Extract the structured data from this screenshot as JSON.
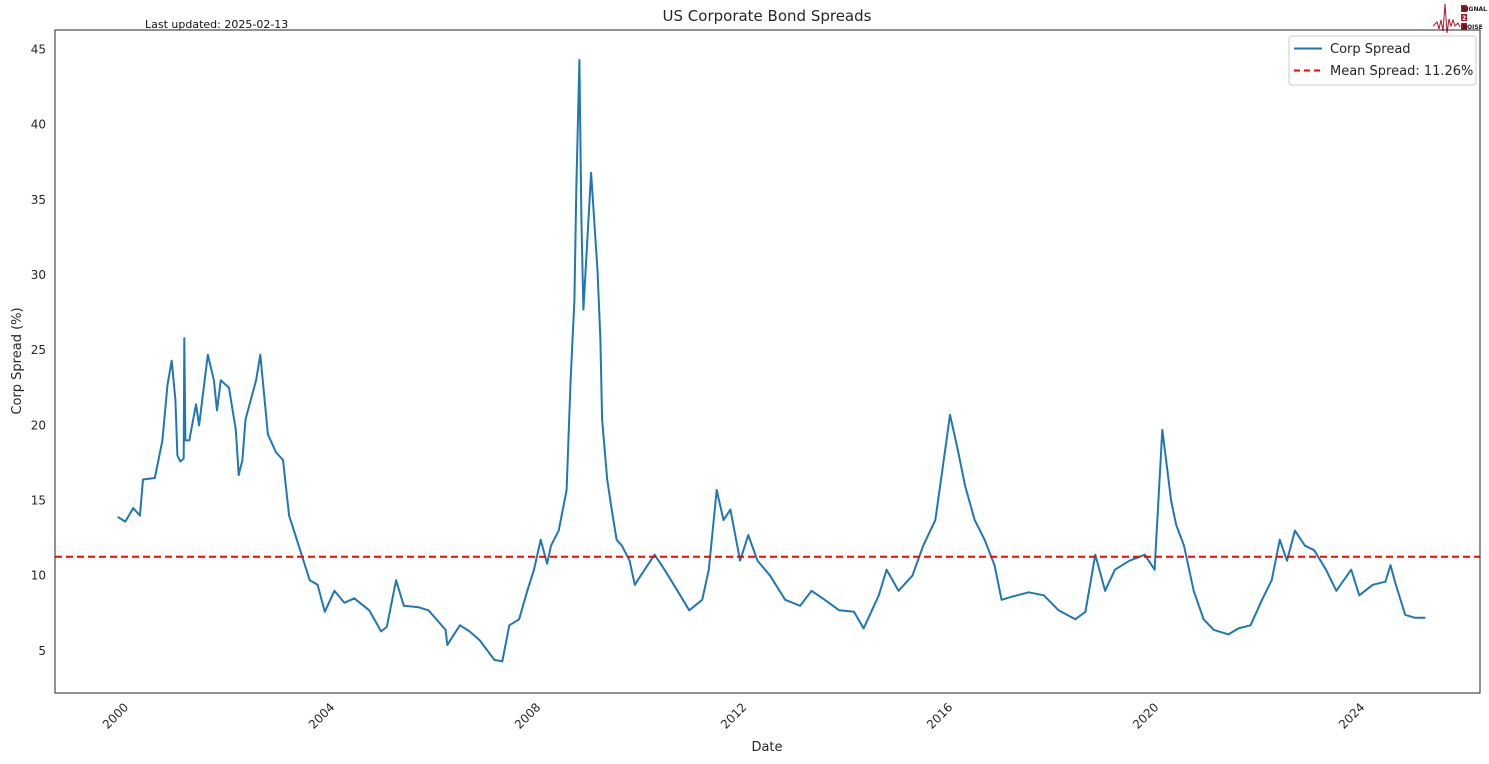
{
  "chart_data": {
    "type": "line",
    "title": "US Corporate Bond Spreads",
    "subtitle": "Last updated: 2025-02-13",
    "xlabel": "Date",
    "ylabel": "Corp Spread (%)",
    "xlim": [
      "1998-07-10",
      "2026-03-10"
    ],
    "ylim": [
      2.2,
      46.3
    ],
    "x_ticks": [
      "2000",
      "2004",
      "2008",
      "2012",
      "2016",
      "2020",
      "2024"
    ],
    "y_ticks": [
      5,
      10,
      15,
      20,
      25,
      30,
      35,
      40,
      45
    ],
    "grid": false,
    "legend_position": "top-right",
    "colors": {
      "series": "#1f77b4",
      "mean": "#ff0000"
    },
    "series": [
      {
        "name": "Corp Spread",
        "points": [
          [
            "1999-10-01",
            13.9
          ],
          [
            "1999-11-20",
            13.6
          ],
          [
            "2000-01-15",
            14.5
          ],
          [
            "2000-03-03",
            14.0
          ],
          [
            "2000-03-25",
            16.4
          ],
          [
            "2000-06-17",
            16.5
          ],
          [
            "2000-08-10",
            19.0
          ],
          [
            "2000-09-15",
            22.7
          ],
          [
            "2000-10-15",
            24.3
          ],
          [
            "2000-11-10",
            21.7
          ],
          [
            "2000-11-24",
            18.0
          ],
          [
            "2000-12-15",
            17.6
          ],
          [
            "2001-01-08",
            17.8
          ],
          [
            "2001-01-12",
            25.8
          ],
          [
            "2001-01-20",
            19.0
          ],
          [
            "2001-02-17",
            19.0
          ],
          [
            "2001-04-05",
            21.4
          ],
          [
            "2001-04-27",
            20.0
          ],
          [
            "2001-06-28",
            24.7
          ],
          [
            "2001-08-10",
            23.0
          ],
          [
            "2001-09-01",
            21.0
          ],
          [
            "2001-09-28",
            23.0
          ],
          [
            "2001-11-25",
            22.5
          ],
          [
            "2002-01-12",
            19.7
          ],
          [
            "2002-02-02",
            16.7
          ],
          [
            "2002-02-28",
            17.7
          ],
          [
            "2002-03-22",
            20.4
          ],
          [
            "2002-06-05",
            23.0
          ],
          [
            "2002-07-05",
            24.7
          ],
          [
            "2002-08-28",
            19.4
          ],
          [
            "2002-10-25",
            18.2
          ],
          [
            "2002-12-13",
            17.7
          ],
          [
            "2003-01-25",
            14.0
          ],
          [
            "2003-04-10",
            11.8
          ],
          [
            "2003-06-20",
            9.7
          ],
          [
            "2003-08-15",
            9.4
          ],
          [
            "2003-10-05",
            7.6
          ],
          [
            "2003-12-12",
            9.0
          ],
          [
            "2004-02-20",
            8.2
          ],
          [
            "2004-05-01",
            8.5
          ],
          [
            "2004-08-15",
            7.7
          ],
          [
            "2004-11-08",
            6.3
          ],
          [
            "2004-12-18",
            6.6
          ],
          [
            "2005-02-22",
            9.7
          ],
          [
            "2005-04-18",
            8.0
          ],
          [
            "2005-08-01",
            7.9
          ],
          [
            "2005-10-10",
            7.7
          ],
          [
            "2006-02-08",
            6.4
          ],
          [
            "2006-02-20",
            5.4
          ],
          [
            "2006-05-20",
            6.7
          ],
          [
            "2006-07-28",
            6.3
          ],
          [
            "2006-10-08",
            5.7
          ],
          [
            "2007-01-20",
            4.4
          ],
          [
            "2007-03-17",
            4.3
          ],
          [
            "2007-05-05",
            6.7
          ],
          [
            "2007-07-14",
            7.1
          ],
          [
            "2007-09-10",
            9.0
          ],
          [
            "2007-10-27",
            10.4
          ],
          [
            "2007-12-14",
            12.4
          ],
          [
            "2008-01-28",
            10.8
          ],
          [
            "2008-02-25",
            12.0
          ],
          [
            "2008-04-20",
            13.0
          ],
          [
            "2008-06-15",
            15.7
          ],
          [
            "2008-07-13",
            23.0
          ],
          [
            "2008-08-09",
            28.3
          ],
          [
            "2008-08-23",
            35.7
          ],
          [
            "2008-09-14",
            44.3
          ],
          [
            "2008-09-28",
            33.7
          ],
          [
            "2008-10-12",
            27.7
          ],
          [
            "2008-11-01",
            31.0
          ],
          [
            "2008-12-06",
            36.8
          ],
          [
            "2009-01-20",
            30.3
          ],
          [
            "2009-02-10",
            25.7
          ],
          [
            "2009-02-22",
            20.4
          ],
          [
            "2009-03-30",
            16.4
          ],
          [
            "2009-05-01",
            14.4
          ],
          [
            "2009-06-05",
            12.4
          ],
          [
            "2009-07-12",
            12.0
          ],
          [
            "2009-09-05",
            11.0
          ],
          [
            "2009-10-12",
            9.4
          ],
          [
            "2009-12-20",
            10.4
          ],
          [
            "2010-03-01",
            11.4
          ],
          [
            "2010-05-10",
            10.4
          ],
          [
            "2010-08-10",
            9.0
          ],
          [
            "2010-11-01",
            7.7
          ],
          [
            "2011-02-01",
            8.4
          ],
          [
            "2011-03-20",
            10.4
          ],
          [
            "2011-05-15",
            15.7
          ],
          [
            "2011-07-02",
            13.7
          ],
          [
            "2011-08-20",
            14.4
          ],
          [
            "2011-10-28",
            11.0
          ],
          [
            "2011-12-25",
            12.7
          ],
          [
            "2012-02-28",
            11.0
          ],
          [
            "2012-05-28",
            10.0
          ],
          [
            "2012-09-12",
            8.4
          ],
          [
            "2012-12-27",
            8.0
          ],
          [
            "2013-03-18",
            9.0
          ],
          [
            "2013-06-20",
            8.4
          ],
          [
            "2013-09-30",
            7.7
          ],
          [
            "2014-01-13",
            7.6
          ],
          [
            "2014-03-22",
            6.5
          ],
          [
            "2014-07-08",
            8.7
          ],
          [
            "2014-09-01",
            10.4
          ],
          [
            "2014-11-24",
            9.0
          ],
          [
            "2015-03-03",
            10.0
          ],
          [
            "2015-05-18",
            12.0
          ],
          [
            "2015-08-12",
            13.7
          ],
          [
            "2015-10-01",
            17.0
          ],
          [
            "2015-11-24",
            20.7
          ],
          [
            "2016-01-18",
            18.4
          ],
          [
            "2016-03-10",
            16.0
          ],
          [
            "2016-05-18",
            13.7
          ],
          [
            "2016-07-27",
            12.4
          ],
          [
            "2016-10-05",
            10.7
          ],
          [
            "2016-11-25",
            8.4
          ],
          [
            "2017-02-03",
            8.6
          ],
          [
            "2017-06-05",
            8.9
          ],
          [
            "2017-09-20",
            8.7
          ],
          [
            "2018-01-03",
            7.7
          ],
          [
            "2018-05-01",
            7.1
          ],
          [
            "2018-07-12",
            7.6
          ],
          [
            "2018-09-20",
            11.4
          ],
          [
            "2018-11-28",
            9.0
          ],
          [
            "2019-02-06",
            10.4
          ],
          [
            "2019-05-20",
            11.0
          ],
          [
            "2019-09-06",
            11.4
          ],
          [
            "2019-11-14",
            10.4
          ],
          [
            "2020-01-08",
            19.7
          ],
          [
            "2020-02-13",
            17.0
          ],
          [
            "2020-03-10",
            15.0
          ],
          [
            "2020-04-15",
            13.4
          ],
          [
            "2020-06-10",
            12.0
          ],
          [
            "2020-08-18",
            9.0
          ],
          [
            "2020-10-27",
            7.1
          ],
          [
            "2021-01-08",
            6.4
          ],
          [
            "2021-04-22",
            6.1
          ],
          [
            "2021-07-01",
            6.5
          ],
          [
            "2021-09-25",
            6.7
          ],
          [
            "2021-12-15",
            8.4
          ],
          [
            "2022-02-22",
            9.7
          ],
          [
            "2022-04-20",
            12.4
          ],
          [
            "2022-06-10",
            11.0
          ],
          [
            "2022-08-05",
            13.0
          ],
          [
            "2022-10-15",
            12.0
          ],
          [
            "2022-12-20",
            11.7
          ],
          [
            "2023-03-14",
            10.4
          ],
          [
            "2023-05-26",
            9.0
          ],
          [
            "2023-09-08",
            10.4
          ],
          [
            "2023-11-05",
            8.7
          ],
          [
            "2024-02-08",
            9.4
          ],
          [
            "2024-05-08",
            9.6
          ],
          [
            "2024-06-13",
            10.7
          ],
          [
            "2024-07-18",
            9.5
          ],
          [
            "2024-09-26",
            7.4
          ],
          [
            "2024-12-04",
            7.2
          ],
          [
            "2025-02-13",
            7.2
          ]
        ]
      },
      {
        "name": "Mean Spread: 11.26%",
        "type": "hline",
        "value": 11.26
      }
    ]
  },
  "logo": {
    "text": [
      "SIGNAL",
      "2",
      "NOISE"
    ]
  }
}
